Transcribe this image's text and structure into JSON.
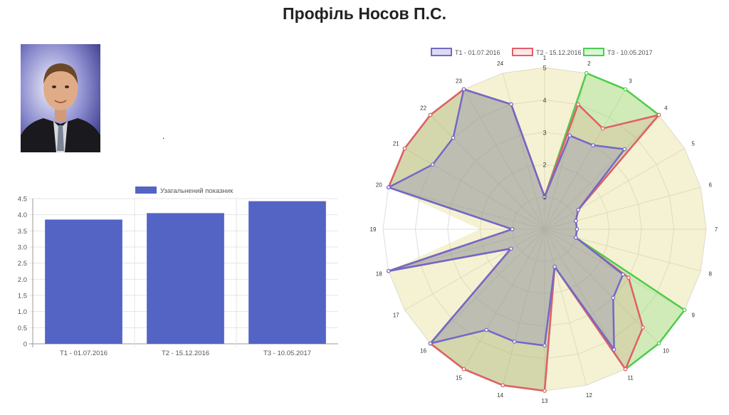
{
  "page": {
    "title": "Профіль Носов П.С.",
    "dot": "."
  },
  "photo": {
    "alt": "portrait photo"
  },
  "colors": {
    "bar": "#5364c5",
    "t1_border": "#7467c8",
    "t1_fill": "rgba(120,110,200,0.25)",
    "t2_border": "#e35d6a",
    "t2_fill": "rgba(235,100,110,0.15)",
    "t3_border": "#4ccc4c",
    "t3_fill": "rgba(100,220,100,0.25)",
    "ideal_fill": "rgba(225,215,130,0.35)"
  },
  "chart_data": [
    {
      "type": "bar",
      "categories": [
        "Т1 - 01.07.2016",
        "Т2 - 15.12.2016",
        "Т3 - 10.05.2017"
      ],
      "series": [
        {
          "name": "Узагальнений показник",
          "values": [
            3.85,
            4.05,
            4.42
          ]
        }
      ],
      "ylim": [
        0,
        4.5
      ],
      "yticks": [
        "0",
        "0.5",
        "1.0",
        "1.5",
        "2.0",
        "2.5",
        "3.0",
        "3.5",
        "4.0",
        "4.5"
      ],
      "grid": true,
      "legend": "top"
    },
    {
      "type": "radar",
      "labels": [
        "1",
        "2",
        "3",
        "4",
        "5",
        "6",
        "7",
        "8",
        "9",
        "10",
        "11",
        "12",
        "13",
        "14",
        "15",
        "16",
        "17",
        "18",
        "19",
        "20",
        "21",
        "22",
        "23",
        "24"
      ],
      "rlim": [
        0,
        5
      ],
      "rticks": [
        "1",
        "2",
        "3",
        "4",
        "5"
      ],
      "series": [
        {
          "name": "Т1 - 01.07.2016",
          "values": [
            1,
            3,
            3,
            3.5,
            1.2,
            1,
            1,
            1,
            2.8,
            3,
            4.3,
            1.2,
            3.6,
            3.6,
            3.6,
            5,
            1.2,
            5,
            1,
            5,
            4,
            4,
            5,
            4
          ]
        },
        {
          "name": "Т2 - 15.12.2016",
          "values": [
            1,
            4,
            3.6,
            5,
            1.2,
            1,
            1,
            1,
            3,
            4.3,
            5,
            1.2,
            5,
            5,
            5,
            5,
            1.2,
            5,
            1,
            5,
            5,
            5,
            5,
            4
          ]
        },
        {
          "name": "Т3 - 10.05.2017",
          "values": [
            1,
            5,
            5,
            5,
            1.2,
            1,
            1,
            1,
            5,
            5,
            5,
            1.2,
            5,
            5,
            5,
            5,
            1.2,
            5,
            1,
            5,
            5,
            5,
            5,
            4
          ]
        },
        {
          "name": "",
          "values": [
            5,
            5,
            5,
            5,
            5,
            5,
            5,
            5,
            5,
            5,
            5,
            5,
            5,
            5,
            5,
            5,
            5,
            5,
            2,
            5,
            5,
            5,
            5,
            5
          ]
        }
      ],
      "legend": "top"
    }
  ]
}
